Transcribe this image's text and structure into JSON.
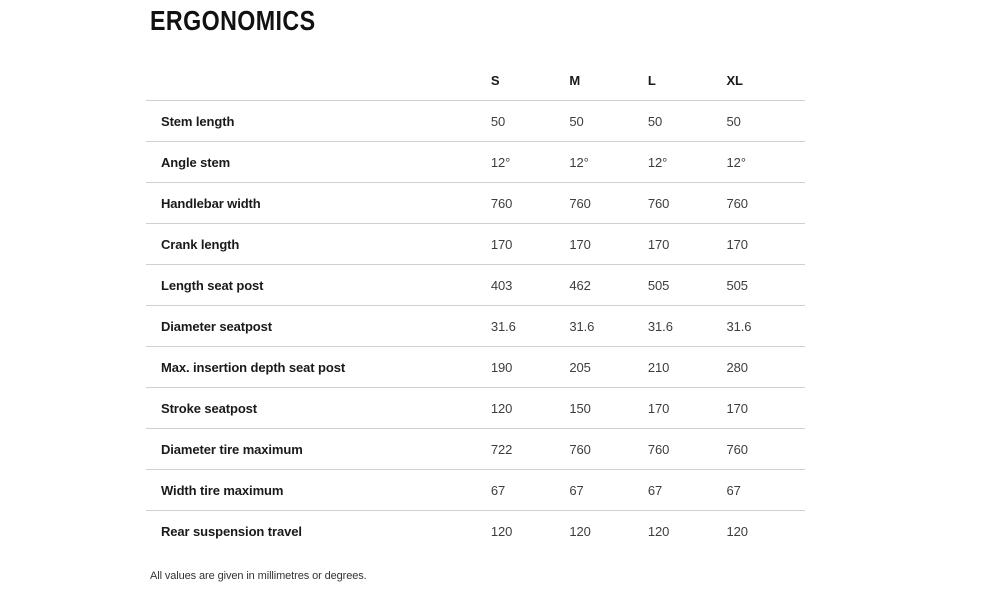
{
  "page": {
    "title": "ERGONOMICS",
    "footnote": "All values are given in millimetres or degrees."
  },
  "chart_data": {
    "type": "table",
    "title": "ERGONOMICS",
    "columns": [
      "S",
      "M",
      "L",
      "XL"
    ],
    "rows": [
      {
        "label": "Stem length",
        "values": [
          "50",
          "50",
          "50",
          "50"
        ]
      },
      {
        "label": "Angle stem",
        "values": [
          "12°",
          "12°",
          "12°",
          "12°"
        ]
      },
      {
        "label": "Handlebar width",
        "values": [
          "760",
          "760",
          "760",
          "760"
        ]
      },
      {
        "label": "Crank length",
        "values": [
          "170",
          "170",
          "170",
          "170"
        ]
      },
      {
        "label": "Length seat post",
        "values": [
          "403",
          "462",
          "505",
          "505"
        ]
      },
      {
        "label": "Diameter seatpost",
        "values": [
          "31.6",
          "31.6",
          "31.6",
          "31.6"
        ]
      },
      {
        "label": "Max. insertion depth seat post",
        "values": [
          "190",
          "205",
          "210",
          "280"
        ]
      },
      {
        "label": "Stroke seatpost",
        "values": [
          "120",
          "150",
          "170",
          "170"
        ]
      },
      {
        "label": "Diameter tire maximum",
        "values": [
          "722",
          "760",
          "760",
          "760"
        ]
      },
      {
        "label": "Width tire maximum",
        "values": [
          "67",
          "67",
          "67",
          "67"
        ]
      },
      {
        "label": "Rear suspension travel",
        "values": [
          "120",
          "120",
          "120",
          "120"
        ]
      }
    ],
    "units_note": "All values are given in millimetres or degrees.",
    "layout": {
      "grid": "horizontal-dividers-only",
      "header_position": "top",
      "value_alignment": "left"
    }
  }
}
